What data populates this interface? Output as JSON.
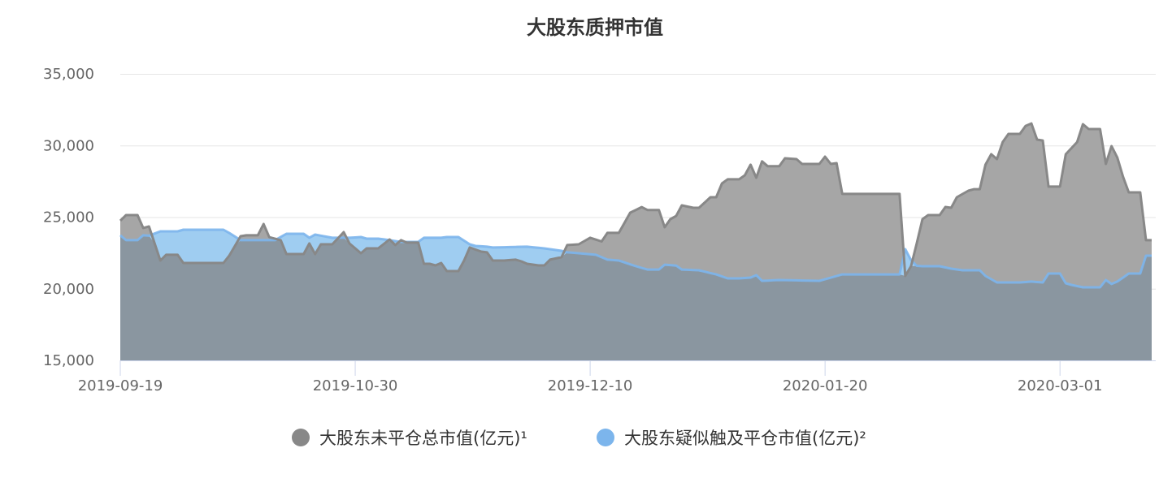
{
  "chart_data": {
    "type": "area",
    "title": "大股东质押市值",
    "xlabel": "",
    "ylabel": "",
    "ylim": [
      15000,
      35000
    ],
    "yticks": [
      "15,000",
      "20,000",
      "25,000",
      "30,000",
      "35,000"
    ],
    "ytick_values": [
      15000,
      20000,
      25000,
      30000,
      35000
    ],
    "xticks": [
      "2019-09-19",
      "2019-10-30",
      "2019-12-10",
      "2020-01-20",
      "2020-03-01"
    ],
    "xlim": [
      "2019-09-19",
      "2020-03-17"
    ],
    "grid": "horizontal",
    "legend_position": "bottom",
    "series": [
      {
        "name": "大股东未平仓总市值(亿元)¹",
        "color": "#888888",
        "points": [
          [
            "2019-09-19",
            24750
          ],
          [
            "2019-09-20",
            25140
          ],
          [
            "2019-09-22",
            25140
          ],
          [
            "2019-09-23",
            24240
          ],
          [
            "2019-09-24",
            24350
          ],
          [
            "2019-09-26",
            21970
          ],
          [
            "2019-09-27",
            22370
          ],
          [
            "2019-09-29",
            22370
          ],
          [
            "2019-09-30",
            21800
          ],
          [
            "2019-10-07",
            21800
          ],
          [
            "2019-10-08",
            22300
          ],
          [
            "2019-10-10",
            23670
          ],
          [
            "2019-10-11",
            23730
          ],
          [
            "2019-10-13",
            23730
          ],
          [
            "2019-10-14",
            24520
          ],
          [
            "2019-10-15",
            23600
          ],
          [
            "2019-10-17",
            23390
          ],
          [
            "2019-10-18",
            22420
          ],
          [
            "2019-10-21",
            22420
          ],
          [
            "2019-10-22",
            23160
          ],
          [
            "2019-10-23",
            22420
          ],
          [
            "2019-10-24",
            23100
          ],
          [
            "2019-10-26",
            23100
          ],
          [
            "2019-10-28",
            23950
          ],
          [
            "2019-10-29",
            23160
          ],
          [
            "2019-10-31",
            22480
          ],
          [
            "2019-11-01",
            22820
          ],
          [
            "2019-11-03",
            22820
          ],
          [
            "2019-11-05",
            23440
          ],
          [
            "2019-11-06",
            23050
          ],
          [
            "2019-11-07",
            23390
          ],
          [
            "2019-11-08",
            23220
          ],
          [
            "2019-11-10",
            23220
          ],
          [
            "2019-11-11",
            21740
          ],
          [
            "2019-11-12",
            21740
          ],
          [
            "2019-11-13",
            21630
          ],
          [
            "2019-11-14",
            21800
          ],
          [
            "2019-11-15",
            21230
          ],
          [
            "2019-11-17",
            21230
          ],
          [
            "2019-11-18",
            21970
          ],
          [
            "2019-11-19",
            22880
          ],
          [
            "2019-11-21",
            22590
          ],
          [
            "2019-11-22",
            22540
          ],
          [
            "2019-11-23",
            21970
          ],
          [
            "2019-11-25",
            21970
          ],
          [
            "2019-11-27",
            22030
          ],
          [
            "2019-11-28",
            21910
          ],
          [
            "2019-11-29",
            21740
          ],
          [
            "2019-12-01",
            21630
          ],
          [
            "2019-12-02",
            21630
          ],
          [
            "2019-12-03",
            22030
          ],
          [
            "2019-12-05",
            22200
          ],
          [
            "2019-12-06",
            23050
          ],
          [
            "2019-12-08",
            23100
          ],
          [
            "2019-12-10",
            23560
          ],
          [
            "2019-12-12",
            23300
          ],
          [
            "2019-12-13",
            23900
          ],
          [
            "2019-12-15",
            23900
          ],
          [
            "2019-12-17",
            25310
          ],
          [
            "2019-12-19",
            25700
          ],
          [
            "2019-12-20",
            25500
          ],
          [
            "2019-12-22",
            25500
          ],
          [
            "2019-12-23",
            24290
          ],
          [
            "2019-12-24",
            24860
          ],
          [
            "2019-12-25",
            25080
          ],
          [
            "2019-12-26",
            25820
          ],
          [
            "2019-12-28",
            25650
          ],
          [
            "2019-12-29",
            25650
          ],
          [
            "2019-12-31",
            26390
          ],
          [
            "2020-01-01",
            26390
          ],
          [
            "2020-01-02",
            27350
          ],
          [
            "2020-01-03",
            27640
          ],
          [
            "2020-01-05",
            27640
          ],
          [
            "2020-01-06",
            27920
          ],
          [
            "2020-01-07",
            28660
          ],
          [
            "2020-01-08",
            27750
          ],
          [
            "2020-01-09",
            28890
          ],
          [
            "2020-01-10",
            28550
          ],
          [
            "2020-01-12",
            28550
          ],
          [
            "2020-01-13",
            29110
          ],
          [
            "2020-01-15",
            29050
          ],
          [
            "2020-01-16",
            28710
          ],
          [
            "2020-01-19",
            28710
          ],
          [
            "2020-01-20",
            29220
          ],
          [
            "2020-01-21",
            28710
          ],
          [
            "2020-01-22",
            28770
          ],
          [
            "2020-01-23",
            26620
          ],
          [
            "2020-02-02",
            26620
          ],
          [
            "2020-02-03",
            20890
          ],
          [
            "2020-02-04",
            21570
          ],
          [
            "2020-02-05",
            23160
          ],
          [
            "2020-02-06",
            24860
          ],
          [
            "2020-02-07",
            25140
          ],
          [
            "2020-02-09",
            25140
          ],
          [
            "2020-02-10",
            25710
          ],
          [
            "2020-02-11",
            25650
          ],
          [
            "2020-02-12",
            26390
          ],
          [
            "2020-02-14",
            26840
          ],
          [
            "2020-02-15",
            26950
          ],
          [
            "2020-02-16",
            26950
          ],
          [
            "2020-02-17",
            28660
          ],
          [
            "2020-02-18",
            29390
          ],
          [
            "2020-02-19",
            29050
          ],
          [
            "2020-02-20",
            30240
          ],
          [
            "2020-02-21",
            30810
          ],
          [
            "2020-02-23",
            30810
          ],
          [
            "2020-02-24",
            31370
          ],
          [
            "2020-02-25",
            31540
          ],
          [
            "2020-02-26",
            30410
          ],
          [
            "2020-02-27",
            30350
          ],
          [
            "2020-02-28",
            27130
          ],
          [
            "2020-03-01",
            27130
          ],
          [
            "2020-03-02",
            29390
          ],
          [
            "2020-03-04",
            30240
          ],
          [
            "2020-03-05",
            31490
          ],
          [
            "2020-03-06",
            31150
          ],
          [
            "2020-03-08",
            31150
          ],
          [
            "2020-03-09",
            28710
          ],
          [
            "2020-03-10",
            29960
          ],
          [
            "2020-03-11",
            29160
          ],
          [
            "2020-03-12",
            27810
          ],
          [
            "2020-03-13",
            26730
          ],
          [
            "2020-03-15",
            26730
          ],
          [
            "2020-03-16",
            23390
          ],
          [
            "2020-03-17",
            23390
          ]
        ]
      },
      {
        "name": "大股东疑似触及平仓市值(亿元)²",
        "color": "#7cb5ec",
        "points": [
          [
            "2019-09-19",
            23730
          ],
          [
            "2019-09-20",
            23390
          ],
          [
            "2019-09-22",
            23390
          ],
          [
            "2019-09-23",
            23730
          ],
          [
            "2019-09-24",
            23700
          ],
          [
            "2019-09-26",
            24010
          ],
          [
            "2019-09-29",
            24010
          ],
          [
            "2019-09-30",
            24120
          ],
          [
            "2019-10-07",
            24120
          ],
          [
            "2019-10-08",
            23900
          ],
          [
            "2019-10-10",
            23390
          ],
          [
            "2019-10-16",
            23390
          ],
          [
            "2019-10-18",
            23840
          ],
          [
            "2019-10-21",
            23840
          ],
          [
            "2019-10-22",
            23560
          ],
          [
            "2019-10-23",
            23780
          ],
          [
            "2019-10-26",
            23560
          ],
          [
            "2019-10-29",
            23560
          ],
          [
            "2019-10-31",
            23610
          ],
          [
            "2019-11-01",
            23500
          ],
          [
            "2019-11-03",
            23500
          ],
          [
            "2019-11-05",
            23390
          ],
          [
            "2019-11-07",
            23270
          ],
          [
            "2019-11-10",
            23270
          ],
          [
            "2019-11-11",
            23560
          ],
          [
            "2019-11-14",
            23560
          ],
          [
            "2019-11-15",
            23610
          ],
          [
            "2019-11-17",
            23610
          ],
          [
            "2019-11-19",
            23100
          ],
          [
            "2019-11-20",
            22990
          ],
          [
            "2019-11-22",
            22940
          ],
          [
            "2019-11-23",
            22880
          ],
          [
            "2019-11-29",
            22940
          ],
          [
            "2019-12-02",
            22820
          ],
          [
            "2019-12-03",
            22760
          ],
          [
            "2019-12-05",
            22650
          ],
          [
            "2019-12-06",
            22540
          ],
          [
            "2019-12-08",
            22480
          ],
          [
            "2019-12-11",
            22370
          ],
          [
            "2019-12-13",
            22030
          ],
          [
            "2019-12-15",
            21970
          ],
          [
            "2019-12-18",
            21570
          ],
          [
            "2019-12-20",
            21340
          ],
          [
            "2019-12-22",
            21340
          ],
          [
            "2019-12-23",
            21680
          ],
          [
            "2019-12-25",
            21620
          ],
          [
            "2019-12-26",
            21340
          ],
          [
            "2019-12-29",
            21290
          ],
          [
            "2020-01-01",
            21000
          ],
          [
            "2020-01-03",
            20720
          ],
          [
            "2020-01-05",
            20720
          ],
          [
            "2020-01-07",
            20780
          ],
          [
            "2020-01-08",
            20950
          ],
          [
            "2020-01-09",
            20550
          ],
          [
            "2020-01-12",
            20610
          ],
          [
            "2020-01-19",
            20550
          ],
          [
            "2020-01-23",
            21000
          ],
          [
            "2020-02-02",
            21000
          ],
          [
            "2020-02-03",
            22760
          ],
          [
            "2020-02-04",
            22000
          ],
          [
            "2020-02-05",
            21600
          ],
          [
            "2020-02-06",
            21570
          ],
          [
            "2020-02-09",
            21570
          ],
          [
            "2020-02-11",
            21400
          ],
          [
            "2020-02-13",
            21290
          ],
          [
            "2020-02-16",
            21290
          ],
          [
            "2020-02-17",
            20890
          ],
          [
            "2020-02-19",
            20440
          ],
          [
            "2020-02-23",
            20440
          ],
          [
            "2020-02-25",
            20500
          ],
          [
            "2020-02-27",
            20440
          ],
          [
            "2020-02-28",
            21060
          ],
          [
            "2020-03-01",
            21060
          ],
          [
            "2020-03-02",
            20380
          ],
          [
            "2020-03-03",
            20270
          ],
          [
            "2020-03-05",
            20100
          ],
          [
            "2020-03-08",
            20100
          ],
          [
            "2020-03-09",
            20610
          ],
          [
            "2020-03-10",
            20330
          ],
          [
            "2020-03-11",
            20500
          ],
          [
            "2020-03-13",
            21060
          ],
          [
            "2020-03-15",
            21060
          ],
          [
            "2020-03-16",
            22310
          ],
          [
            "2020-03-17",
            22310
          ]
        ]
      }
    ]
  }
}
